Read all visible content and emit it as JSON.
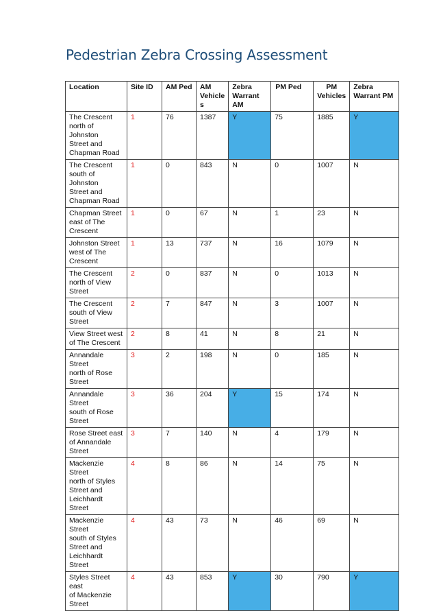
{
  "title": "Pedestrian Zebra Crossing Assessment",
  "headers": [
    "Location",
    "Site ID",
    "AM Ped",
    "AM Vehicles",
    "Zebra Warrant AM",
    "PM Ped",
    "PM Vehicles",
    "Zebra Warrant PM"
  ],
  "header_lines": {
    "location": "Location",
    "site_id": "Site ID",
    "am_ped": "AM Ped",
    "am_vehicles": [
      "AM",
      "Vehicle",
      "s"
    ],
    "zebra_am": [
      "Zebra",
      "Warrant",
      "AM"
    ],
    "pm_ped": "PM Ped",
    "pm_vehicles": [
      "PM",
      "Vehicles"
    ],
    "zebra_pm": [
      "Zebra",
      "Warrant PM"
    ]
  },
  "highlight_color": "#47aee6",
  "site_id_color": "#e02020",
  "rows": [
    {
      "location": [
        "The Crescent",
        "north of Johnston",
        "Street and",
        "Chapman Road"
      ],
      "site_id": "1",
      "am_ped": "76",
      "am_vehicles": "1387",
      "zebra_am": "Y",
      "pm_ped": "75",
      "pm_vehicles": "1885",
      "zebra_pm": "Y"
    },
    {
      "location": [
        "The Crescent",
        "south of Johnston",
        "Street and",
        "Chapman Road"
      ],
      "site_id": "1",
      "am_ped": "0",
      "am_vehicles": "843",
      "zebra_am": "N",
      "pm_ped": "0",
      "pm_vehicles": "1007",
      "zebra_pm": "N"
    },
    {
      "location": [
        "Chapman Street",
        "east of The",
        "Crescent"
      ],
      "site_id": "1",
      "am_ped": "0",
      "am_vehicles": "67",
      "zebra_am": "N",
      "pm_ped": "1",
      "pm_vehicles": "23",
      "zebra_pm": "N"
    },
    {
      "location": [
        "Johnston Street",
        "west of The",
        "Crescent"
      ],
      "site_id": "1",
      "am_ped": "13",
      "am_vehicles": "737",
      "zebra_am": "N",
      "pm_ped": "16",
      "pm_vehicles": "1079",
      "zebra_pm": "N"
    },
    {
      "location": [
        "The Crescent",
        "north of View",
        "Street"
      ],
      "site_id": "2",
      "am_ped": "0",
      "am_vehicles": "837",
      "zebra_am": "N",
      "pm_ped": "0",
      "pm_vehicles": "1013",
      "zebra_pm": "N"
    },
    {
      "location": [
        "The Crescent",
        "south of View",
        "Street"
      ],
      "site_id": "2",
      "am_ped": "7",
      "am_vehicles": "847",
      "zebra_am": "N",
      "pm_ped": "3",
      "pm_vehicles": "1007",
      "zebra_pm": "N"
    },
    {
      "location": [
        "View Street west",
        "of The Crescent"
      ],
      "site_id": "2",
      "am_ped": "8",
      "am_vehicles": "41",
      "zebra_am": "N",
      "pm_ped": "8",
      "pm_vehicles": "21",
      "zebra_pm": "N"
    },
    {
      "location": [
        "Annandale Street",
        "north of Rose",
        "Street"
      ],
      "site_id": "3",
      "am_ped": "2",
      "am_vehicles": "198",
      "zebra_am": "N",
      "pm_ped": "0",
      "pm_vehicles": "185",
      "zebra_pm": "N"
    },
    {
      "location": [
        "Annandale Street",
        "south of Rose",
        "Street"
      ],
      "site_id": "3",
      "am_ped": "36",
      "am_vehicles": "204",
      "zebra_am": "Y",
      "pm_ped": "15",
      "pm_vehicles": "174",
      "zebra_pm": "N"
    },
    {
      "location": [
        "Rose Street east",
        "of Annandale",
        "Street"
      ],
      "site_id": "3",
      "am_ped": "7",
      "am_vehicles": "140",
      "zebra_am": "N",
      "pm_ped": "4",
      "pm_vehicles": "179",
      "zebra_pm": "N"
    },
    {
      "location": [
        "Mackenzie Street",
        "north of Styles",
        "Street and",
        "Leichhardt Street"
      ],
      "site_id": "4",
      "am_ped": "8",
      "am_vehicles": "86",
      "zebra_am": "N",
      "pm_ped": "14",
      "pm_vehicles": "75",
      "zebra_pm": "N"
    },
    {
      "location": [
        "Mackenzie Street",
        "south of Styles",
        "Street and",
        "Leichhardt Street"
      ],
      "site_id": "4",
      "am_ped": "43",
      "am_vehicles": "73",
      "zebra_am": "N",
      "pm_ped": "46",
      "pm_vehicles": "69",
      "zebra_pm": "N"
    },
    {
      "location": [
        "Styles Street east",
        "of Mackenzie",
        "Street"
      ],
      "site_id": "4",
      "am_ped": "43",
      "am_vehicles": "853",
      "zebra_am": "Y",
      "pm_ped": "30",
      "pm_vehicles": "790",
      "zebra_pm": "Y"
    }
  ]
}
